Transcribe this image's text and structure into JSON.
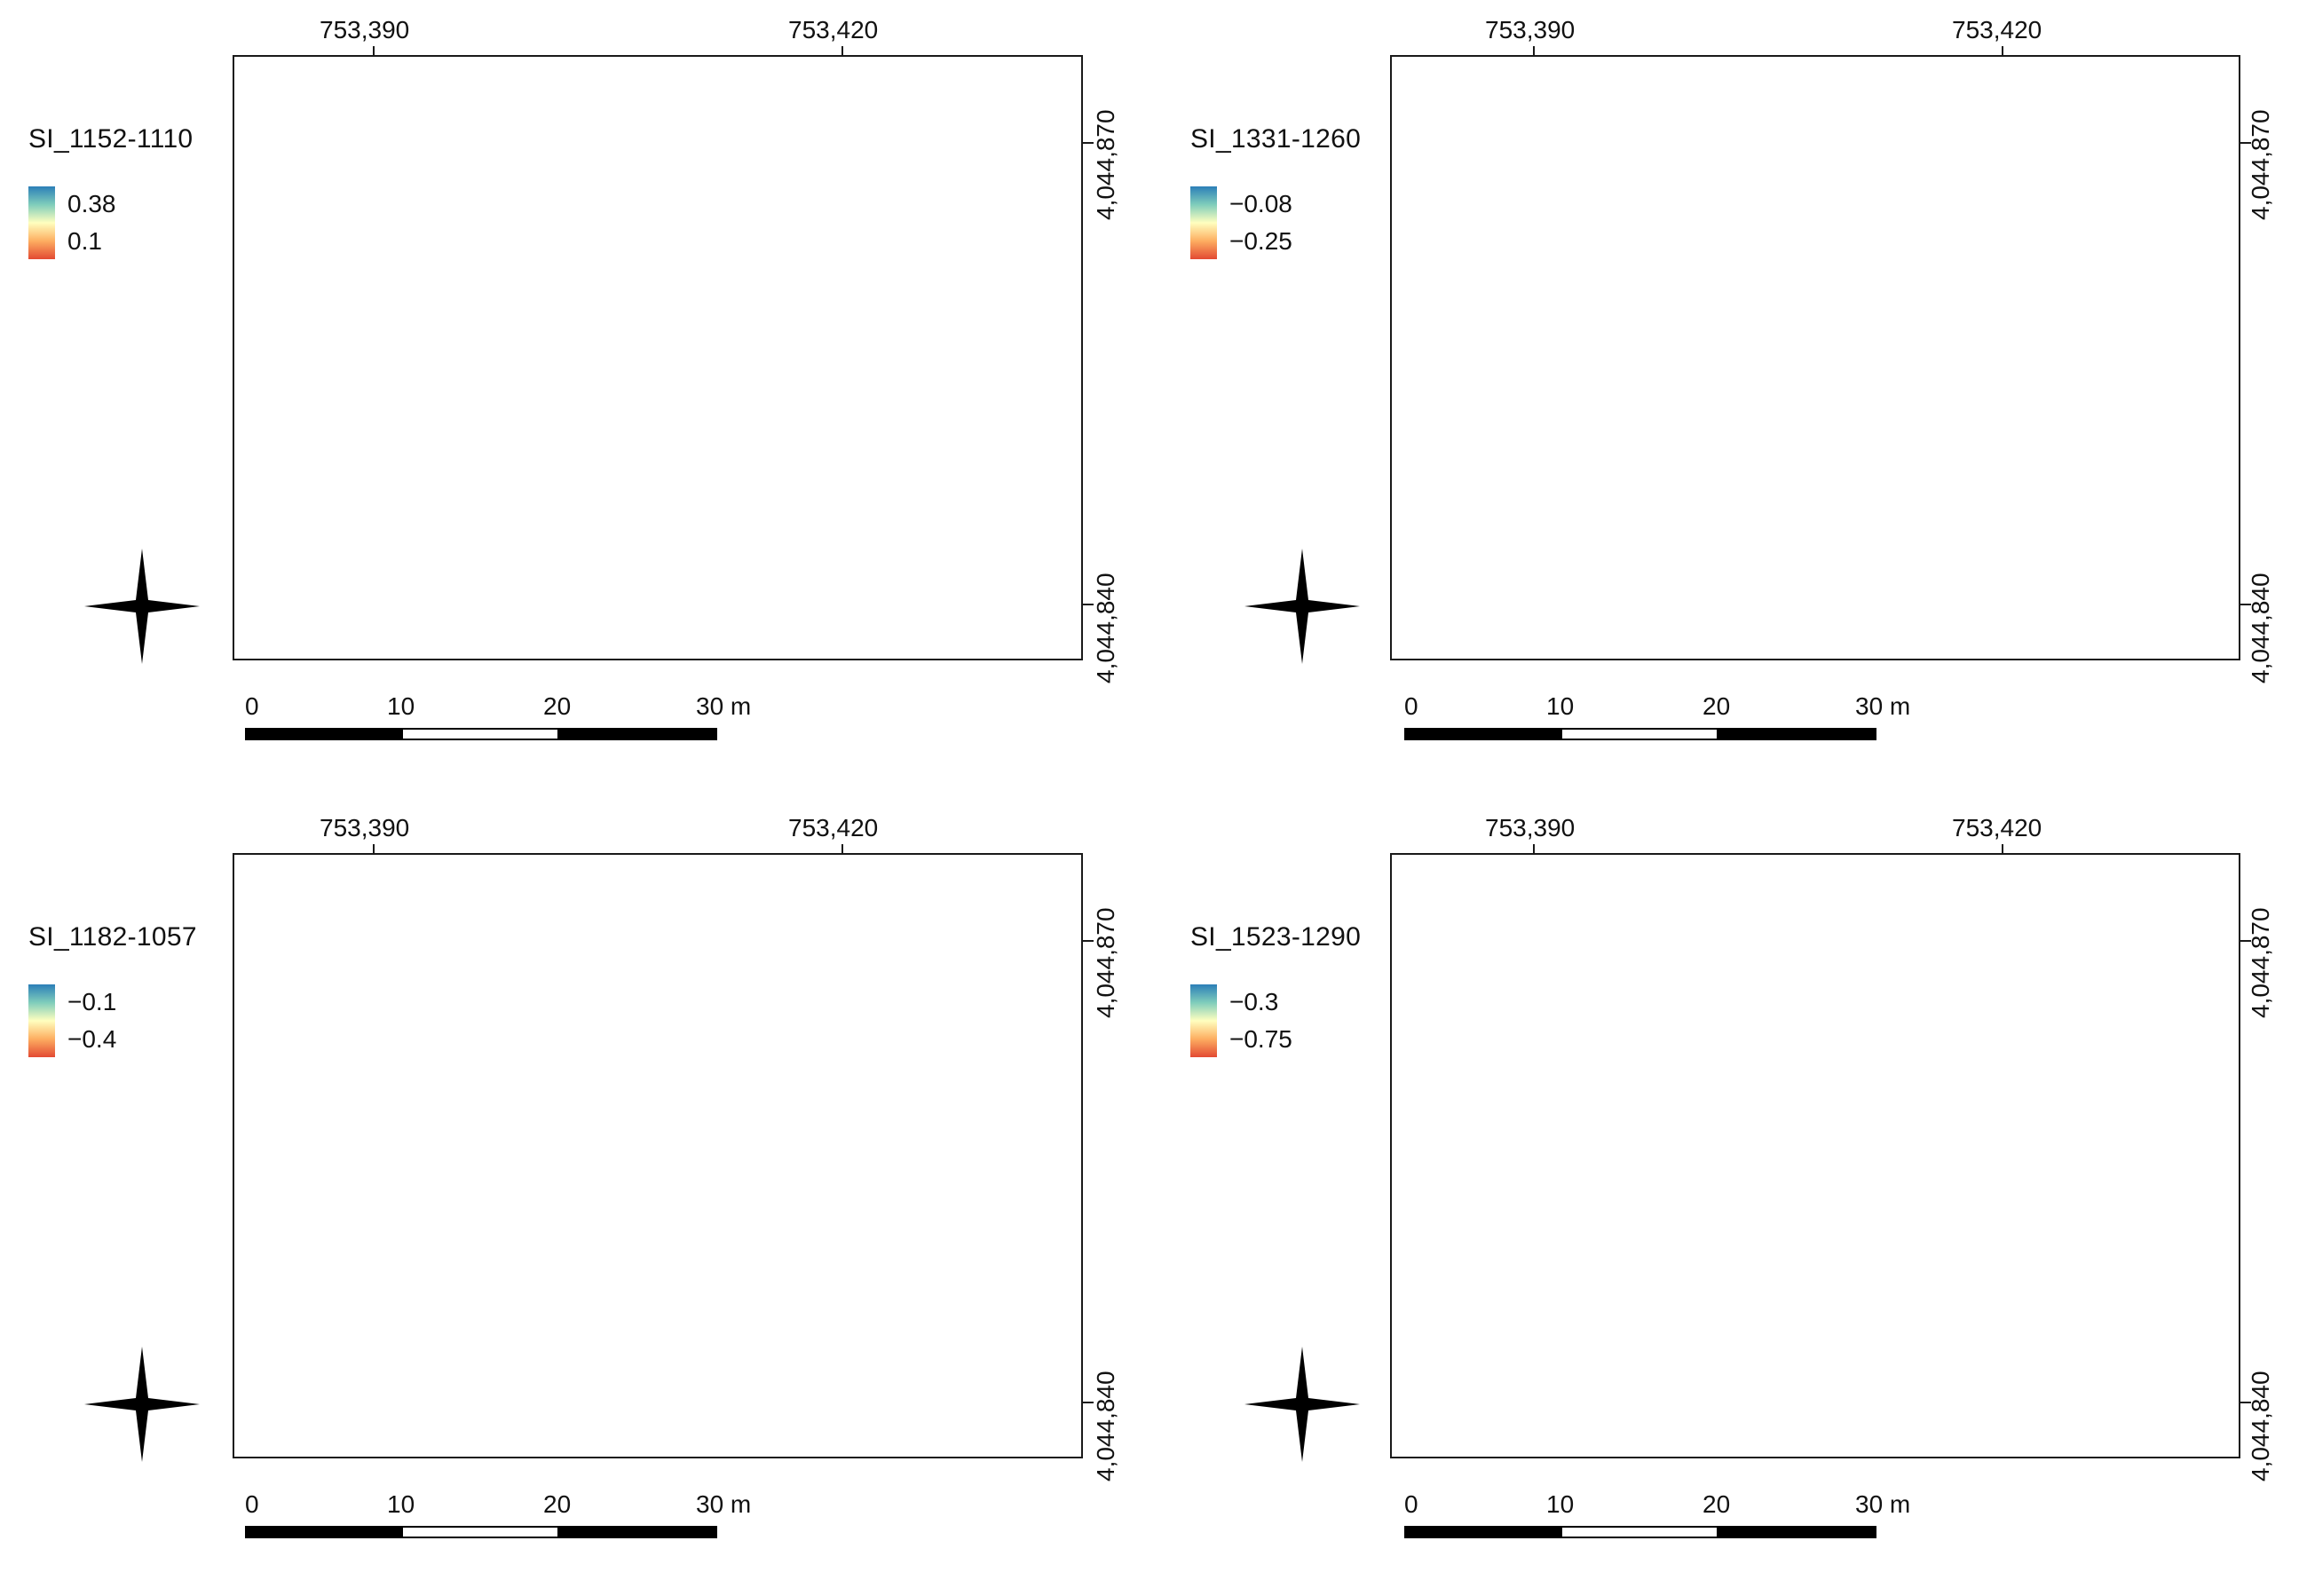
{
  "colors": {
    "high": "#2c7fb8",
    "mid": "#ffffbf",
    "low": "#e34a33",
    "water": "#6d9aa3",
    "rock": "#9a9a9a",
    "sea": "#1f4b4a"
  },
  "panels": [
    {
      "title": "SI_1152-1110",
      "legend": {
        "high": "0.38",
        "low": "0.1"
      },
      "x_ticks": [
        "753,390",
        "753,420"
      ],
      "y_ticks": [
        "4,044,870",
        "4,044,840"
      ],
      "scale": {
        "labels": [
          "0",
          "10",
          "20",
          "30 m"
        ]
      },
      "dominance": "low"
    },
    {
      "title": "SI_1331-1260",
      "legend": {
        "high": "−0.08",
        "low": "−0.25"
      },
      "x_ticks": [
        "753,390",
        "753,420"
      ],
      "y_ticks": [
        "4,044,870",
        "4,044,840"
      ],
      "scale": {
        "labels": [
          "0",
          "10",
          "20",
          "30 m"
        ]
      },
      "dominance": "high"
    },
    {
      "title": "SI_1182-1057",
      "legend": {
        "high": "−0.1",
        "low": "−0.4"
      },
      "x_ticks": [
        "753,390",
        "753,420"
      ],
      "y_ticks": [
        "4,044,870",
        "4,044,840"
      ],
      "scale": {
        "labels": [
          "0",
          "10",
          "20",
          "30 m"
        ]
      },
      "dominance": "mixed"
    },
    {
      "title": "SI_1523-1290",
      "legend": {
        "high": "−0.3",
        "low": "−0.75"
      },
      "x_ticks": [
        "753,390",
        "753,420"
      ],
      "y_ticks": [
        "4,044,870",
        "4,044,840"
      ],
      "scale": {
        "labels": [
          "0",
          "10",
          "20",
          "30 m"
        ]
      },
      "dominance": "east-low"
    }
  ],
  "north_arrow_icon": "compass-star-icon"
}
